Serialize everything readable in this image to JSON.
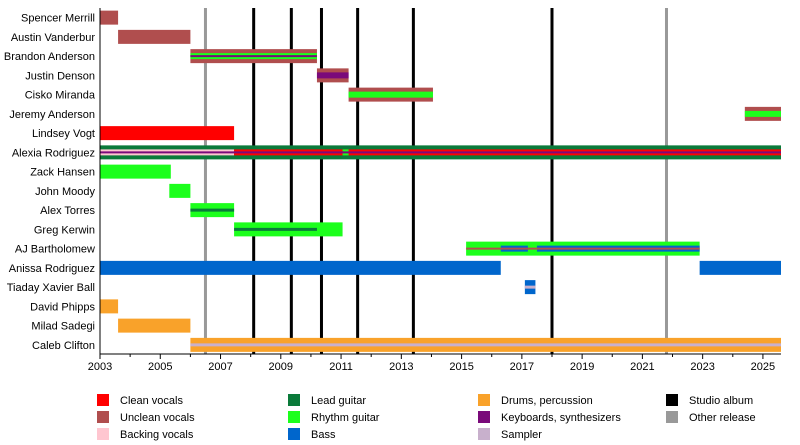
{
  "chart_data": {
    "type": "timeline",
    "xlim": [
      2003,
      2025.6
    ],
    "x_ticks": [
      2003,
      2005,
      2007,
      2009,
      2011,
      2013,
      2015,
      2017,
      2019,
      2021,
      2023,
      2025
    ],
    "roles": {
      "clean": {
        "label": "Clean vocals",
        "color": "#FF0000"
      },
      "unclean": {
        "label": "Unclean vocals",
        "color": "#B04E4E"
      },
      "backing": {
        "label": "Backing vocals",
        "color": "#FFC6D0"
      },
      "lead": {
        "label": "Lead guitar",
        "color": "#0A7A3A"
      },
      "rhythm": {
        "label": "Rhythm guitar",
        "color": "#1CFF1C"
      },
      "bass": {
        "label": "Bass",
        "color": "#0066CC"
      },
      "drums": {
        "label": "Drums, percussion",
        "color": "#F9A22A"
      },
      "keys": {
        "label": "Keyboards, synthesizers",
        "color": "#7A0A7A"
      },
      "sampler": {
        "label": "Sampler",
        "color": "#C8B0CC"
      }
    },
    "events": {
      "studio": {
        "label": "Studio album",
        "color": "#000000",
        "years": [
          2008.1,
          2009.35,
          2010.35,
          2011.55,
          2013.4,
          2018.0
        ]
      },
      "other": {
        "label": "Other release",
        "color": "#999999",
        "years": [
          2006.5,
          2021.8
        ]
      }
    },
    "legend_order": [
      [
        "clean",
        "unclean",
        "backing"
      ],
      [
        "lead",
        "rhythm",
        "bass"
      ],
      [
        "drums",
        "keys",
        "sampler"
      ],
      [
        "studio",
        "other"
      ]
    ],
    "members": [
      {
        "name": "Spencer Merrill",
        "bars": [
          {
            "role": "unclean",
            "from": 2003,
            "to": 2003.6,
            "band": "full"
          }
        ]
      },
      {
        "name": "Austin Vanderbur",
        "bars": [
          {
            "role": "unclean",
            "from": 2003.6,
            "to": 2006,
            "band": "full"
          }
        ]
      },
      {
        "name": "Brandon Anderson",
        "bars": [
          {
            "role": "unclean",
            "from": 2006,
            "to": 2010.2,
            "band": "full"
          },
          {
            "role": "rhythm",
            "from": 2006,
            "to": 2010.2,
            "band": "inner"
          },
          {
            "role": "keys",
            "from": 2006,
            "to": 2010.2,
            "band": "stripe"
          }
        ]
      },
      {
        "name": "Justin Denson",
        "bars": [
          {
            "role": "unclean",
            "from": 2010.2,
            "to": 2011.25,
            "band": "full"
          },
          {
            "role": "keys",
            "from": 2010.2,
            "to": 2011.25,
            "band": "inner"
          }
        ]
      },
      {
        "name": "Cisko Miranda",
        "bars": [
          {
            "role": "unclean",
            "from": 2011.25,
            "to": 2014.05,
            "band": "full"
          },
          {
            "role": "rhythm",
            "from": 2011.25,
            "to": 2014.05,
            "band": "inner"
          }
        ]
      },
      {
        "name": "Jeremy Anderson",
        "bars": [
          {
            "role": "unclean",
            "from": 2024.4,
            "to": 2025.6,
            "band": "full"
          },
          {
            "role": "rhythm",
            "from": 2024.4,
            "to": 2025.6,
            "band": "inner"
          }
        ]
      },
      {
        "name": "Lindsey Vogt",
        "bars": [
          {
            "role": "clean",
            "from": 2003,
            "to": 2007.45,
            "band": "full"
          }
        ]
      },
      {
        "name": "Alexia Rodriguez",
        "bars": [
          {
            "role": "lead",
            "from": 2003,
            "to": 2025.6,
            "band": "full"
          },
          {
            "role": "backing",
            "from": 2003,
            "to": 2007.45,
            "band": "inner"
          },
          {
            "role": "clean",
            "from": 2007.45,
            "to": 2025.6,
            "band": "inner"
          },
          {
            "role": "rhythm",
            "from": 2011.05,
            "to": 2011.25,
            "band": "inner"
          },
          {
            "role": "keys",
            "from": 2003,
            "to": 2025.6,
            "band": "stripe"
          }
        ]
      },
      {
        "name": "Zack Hansen",
        "bars": [
          {
            "role": "rhythm",
            "from": 2003,
            "to": 2005.35,
            "band": "full"
          }
        ]
      },
      {
        "name": "John Moody",
        "bars": [
          {
            "role": "rhythm",
            "from": 2005.3,
            "to": 2006,
            "band": "full"
          }
        ]
      },
      {
        "name": "Alex Torres",
        "bars": [
          {
            "role": "rhythm",
            "from": 2006,
            "to": 2007.45,
            "band": "full"
          },
          {
            "role": "lead",
            "from": 2006,
            "to": 2007.45,
            "band": "stripe"
          }
        ]
      },
      {
        "name": "Greg Kerwin",
        "bars": [
          {
            "role": "rhythm",
            "from": 2007.45,
            "to": 2011.05,
            "band": "full"
          },
          {
            "role": "lead",
            "from": 2007.45,
            "to": 2010.2,
            "band": "stripe"
          }
        ]
      },
      {
        "name": "AJ Bartholomew",
        "bars": [
          {
            "role": "rhythm",
            "from": 2015.15,
            "to": 2022.9,
            "band": "full"
          },
          {
            "role": "bass",
            "from": 2016.3,
            "to": 2017.2,
            "band": "inner"
          },
          {
            "role": "bass",
            "from": 2017.5,
            "to": 2022.9,
            "band": "inner"
          },
          {
            "role": "unclean",
            "from": 2015.15,
            "to": 2022.9,
            "band": "stripe"
          }
        ]
      },
      {
        "name": "Anissa Rodriguez",
        "bars": [
          {
            "role": "bass",
            "from": 2003,
            "to": 2016.3,
            "band": "full"
          },
          {
            "role": "bass",
            "from": 2022.9,
            "to": 2025.6,
            "band": "full"
          }
        ]
      },
      {
        "name": "Tiaday Xavier Ball",
        "bars": [
          {
            "role": "bass",
            "from": 2017.1,
            "to": 2017.45,
            "band": "full"
          },
          {
            "role": "sampler",
            "from": 2017.1,
            "to": 2017.45,
            "band": "stripe"
          }
        ]
      },
      {
        "name": "David Phipps",
        "bars": [
          {
            "role": "drums",
            "from": 2003,
            "to": 2003.6,
            "band": "full"
          }
        ]
      },
      {
        "name": "Milad Sadegi",
        "bars": [
          {
            "role": "drums",
            "from": 2003.6,
            "to": 2006,
            "band": "full"
          }
        ]
      },
      {
        "name": "Caleb Clifton",
        "bars": [
          {
            "role": "drums",
            "from": 2006,
            "to": 2025.6,
            "band": "full"
          },
          {
            "role": "sampler",
            "from": 2006,
            "to": 2025.6,
            "band": "stripe"
          }
        ]
      }
    ]
  }
}
